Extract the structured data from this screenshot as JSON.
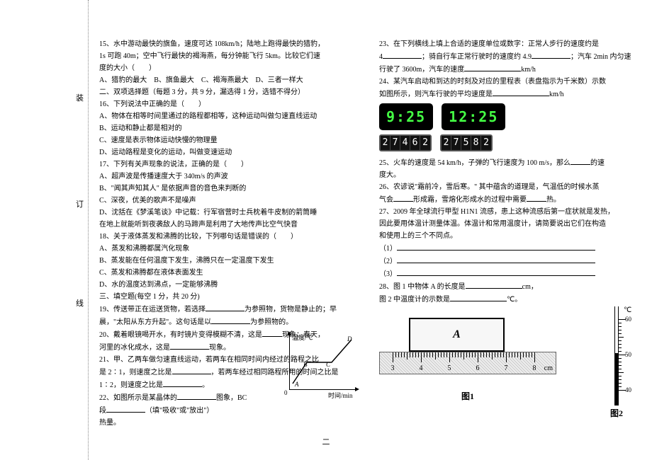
{
  "binding": {
    "c1": "装",
    "c2": "订",
    "c3": "线"
  },
  "left": {
    "q15a": "15、水中游动最快的旗鱼，速度可达 108km/h；陆地上跑得最快的猎豹，",
    "q15b": "1s 可跑 40m；空中飞行最快的褐海燕，每分钟能飞行 5km。比较它们速",
    "q15c": "度的大小（　　）",
    "q15d": "A、猎豹的最大　B、旗鱼最大　C、褐海燕最大　D、三者一样大",
    "s2": "二、双项选择题（每题 3 分，共 9 分，漏选得 1 分，选错不得分）",
    "q16": "16、下列说法中正确的是（　　）",
    "q16a": "A、物体在相等时间里通过的路程都相等，这种运动叫做匀速直线运动",
    "q16b": "B、运动和静止都是相对的",
    "q16c": "C、速度是表示物体运动快慢的物理量",
    "q16d": "D、运动路程是变化的运动，叫做变速运动",
    "q17": "17、下列有关声现象的说法，正确的是（　　）",
    "q17a": "A、超声波是传播速度大于 340m/s 的声波",
    "q17b": "B、\"闻其声知其人\" 是依据声音的音色来判断的",
    "q17c": "C、深夜，优美的歌声不是噪声",
    "q17d1": "D、沈括在《梦溪笔谈》中记载：行军宿营时士兵枕着牛皮制的箭筒睡",
    "q17d2": "在地上就能听到夜袭敌人的马蹄声是利用了大地传声比空气快音",
    "q18": "18、关于液体蒸发和沸腾的比较，下列哪句话是错误的（　　）",
    "q18a": "A、蒸发和沸腾都属汽化现象",
    "q18b": "B、蒸发能在任何温度下发生，沸腾只在一定温度下发生",
    "q18c": "C、蒸发和沸腾都在液体表面发生",
    "q18d": "D、水的温度达到沸点，一定能够沸腾",
    "s3": "三、填空题(每空 1 分，共 20 分)",
    "q19a": "19、传送带正在运送货物，若选择",
    "q19b": "为参照物，货物是静止的；早",
    "q19c": "晨，\"太阳从东方升起\"。这句话是以",
    "q19d": "为参照物的。",
    "q20a": "20、戴着眼镜喝开水，有时镜片变得模糊不清，这是",
    "q20b": "现象；春天，",
    "q20c": "河里的冰化成水，这是",
    "q20d": "现象。",
    "q21a": "21、甲、乙两车做匀速直线运动，若两车在相同时间内经过的路程之比",
    "q21b": "是 2∶1，则速度之比是",
    "q21c": "，若两车经过相同路程所用的时间之比是",
    "q21d": "1∶2，则速度之比是",
    "q21e": "。",
    "q22a": "22、如图所示是某晶体的",
    "q22b": "图象，BC",
    "q22c": "段",
    "q22d": "（填\"吸收\"或\"放出\"）",
    "q22e": "热量。",
    "graph": {
      "ylabel": "温度/℃",
      "xlabel": "时间/min",
      "A": "A",
      "B": "B",
      "C": "C",
      "D": "D",
      "O": "0"
    }
  },
  "right": {
    "q23a": "23、在下列横线上填上合适的速度单位或数字：正常人步行的速度约是",
    "q23b": "4",
    "q23c": "；骑自行车正常行驶时的速度约 4.9",
    "q23d": "；汽车 2min 内匀速",
    "q23e": "行驶了 3600m，汽车的速度",
    "q23f": "km/h",
    "q24a": "24、某汽车启动和到达的时刻及对应的里程表（表盘指示为千米数）示数",
    "q24b": "如图所示，则汽车行驶的平均速度是",
    "q24c": "km/h",
    "lcd1": "9:25",
    "lcd2": "12:25",
    "odo1": [
      "2",
      "7",
      "4",
      "6",
      "2"
    ],
    "odo2": [
      "2",
      "7",
      "5",
      "8",
      "2"
    ],
    "q25a": "25、火车的速度是 54 km/h，子弹的飞行速度为 100 m/s，那么",
    "q25b": "的速",
    "q25c": "度大。",
    "q26a": "26、农谚说\"霜前冷，雪后寒。\" 其中蕴含的道理是，气温低的时候水蒸",
    "q26b": "气会",
    "q26c": "形成霜，雪熔化形成水的过程中需要",
    "q26d": "热。",
    "q27a": "27、2009 年全球流行甲型 H1N1 流感，患上这种流感后第一症状就是发热，",
    "q27b": "因此要用体温计测量体温。体温计和常用温度计，请简要说出它们在构造",
    "q27c": "和使用上的三个不同点。",
    "q27_1": "（1）",
    "q27_2": "（2）",
    "q27_3": "（3）",
    "q28a": "28、图 1 中物体 A 的长度是",
    "q28b": "cm，",
    "q28c": "图 2 中温度计的示数是",
    "q28d": "℃。",
    "blockA": "A",
    "ruler": {
      "nums": [
        "3",
        "4",
        "5",
        "6",
        "7",
        "8"
      ],
      "unit": "cm"
    },
    "fig1": "图1",
    "fig2": "图2",
    "thermo": {
      "unit": "℃",
      "t60": "60",
      "t50": "50",
      "t40": "40"
    }
  },
  "pagenum": "二"
}
